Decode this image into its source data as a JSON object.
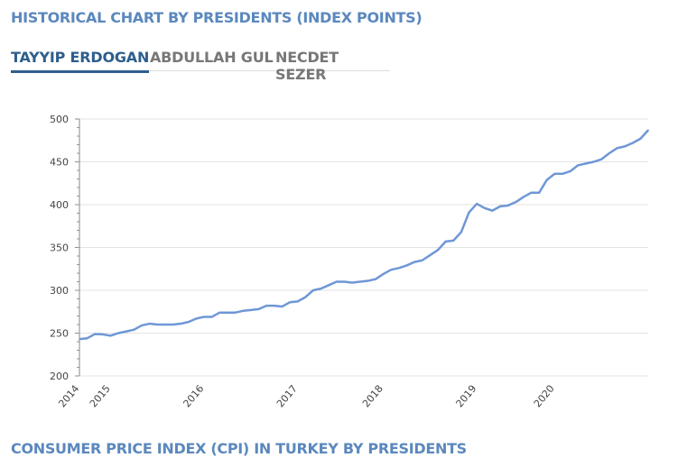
{
  "header": {
    "title": "HISTORICAL CHART BY PRESIDENTS (INDEX POINTS)"
  },
  "tabs": [
    {
      "label": "TAYYIP ERDOGAN",
      "active": true
    },
    {
      "label": "ABDULLAH GUL",
      "active": false
    },
    {
      "label": "NECDET SEZER",
      "active": false
    }
  ],
  "footer": {
    "heading": "CONSUMER PRICE INDEX (CPI) IN TURKEY BY PRESIDENTS"
  },
  "colors": {
    "title": "#5b88bd",
    "active_tab": "#2d5e8c",
    "line": "#6f97d6"
  },
  "chart_data": {
    "type": "line",
    "ylim": [
      200,
      500
    ],
    "yticks": [
      200,
      250,
      300,
      350,
      400,
      450,
      500
    ],
    "grid": true,
    "xticks": [
      {
        "label": "2014",
        "index": 0
      },
      {
        "label": "2015",
        "index": 4
      },
      {
        "label": "2016",
        "index": 16
      },
      {
        "label": "2017",
        "index": 28
      },
      {
        "label": "2018",
        "index": 39
      },
      {
        "label": "2019",
        "index": 51
      },
      {
        "label": "2020",
        "index": 61
      }
    ],
    "series": [
      {
        "values": [
          243,
          244,
          249,
          248.5,
          247,
          250,
          252,
          254,
          259,
          261,
          260,
          260,
          260,
          261,
          263,
          267,
          269,
          269,
          274,
          274,
          274,
          276,
          277,
          278,
          282,
          282,
          281,
          286,
          287,
          292,
          300,
          302,
          306,
          310,
          310,
          309,
          310,
          311,
          313,
          319,
          324,
          326,
          329,
          333,
          335,
          341,
          347,
          357,
          358,
          368,
          391,
          401,
          396,
          393,
          398,
          399,
          403,
          409,
          414,
          414,
          429,
          436,
          436,
          439,
          446,
          448,
          450,
          453,
          460,
          466,
          468,
          472,
          477,
          487
        ]
      }
    ]
  }
}
